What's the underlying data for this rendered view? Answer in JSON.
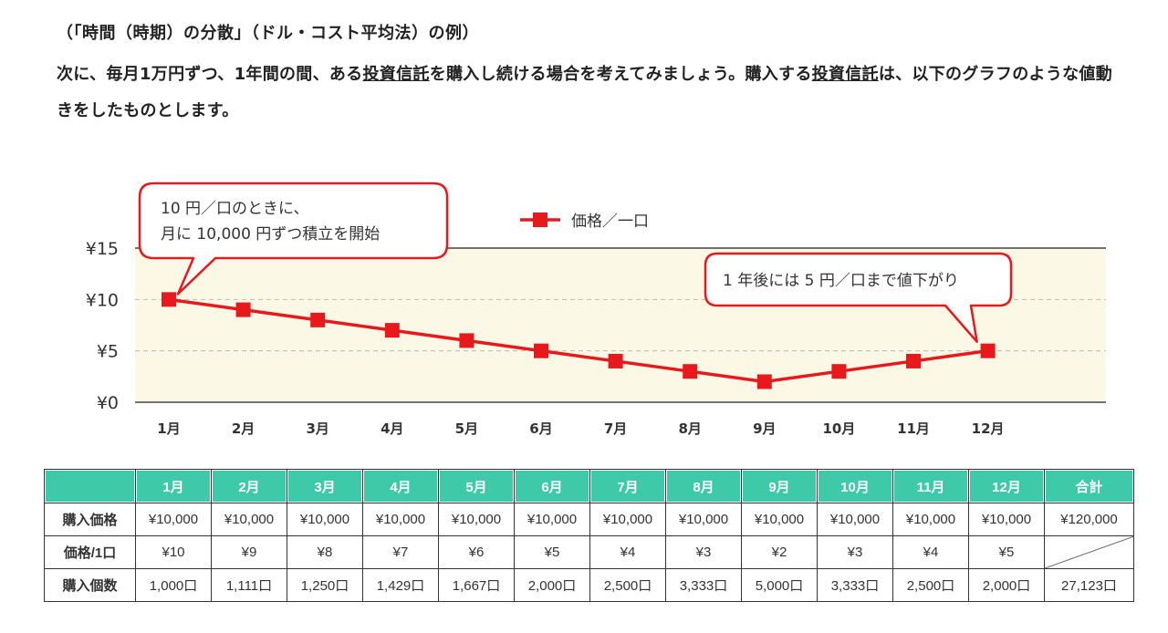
{
  "caption": "（「時間（時期）の分散」（ドル・コスト平均法）の例）",
  "paragraph": {
    "p1": "次に、毎月1万円ずつ、1年間の間、ある",
    "link1": "投資信託",
    "p2": "を購入し続ける場合を考えてみましょう。購入する",
    "link2": "投資信託",
    "p3": "は、以下のグラフのような値動きをしたものとします。"
  },
  "chart_data": {
    "type": "line",
    "categories": [
      "1月",
      "2月",
      "3月",
      "4月",
      "5月",
      "6月",
      "7月",
      "8月",
      "9月",
      "10月",
      "11月",
      "12月"
    ],
    "series": [
      {
        "name": "価格／一口",
        "values": [
          10,
          9,
          8,
          7,
          6,
          5,
          4,
          3,
          2,
          3,
          4,
          5
        ]
      }
    ],
    "y_ticks": [
      "¥15",
      "¥10",
      "¥5",
      "¥0"
    ],
    "y_tick_values": [
      15,
      10,
      5,
      0
    ],
    "ylim": [
      0,
      15
    ],
    "legend_placement": "top-center",
    "grid": true,
    "colors": {
      "line": "#e8191c",
      "plot_bg": "#fbf9e6",
      "callout": "#e8191c",
      "grid": "#bbbbbb"
    },
    "annotations": [
      {
        "line1": "10 円／口のときに、",
        "line2": "月に 10,000 円ずつ積立を開始",
        "anchor": "1月"
      },
      {
        "text": "1 年後には 5 円／口まで値下がり",
        "anchor": "12月"
      }
    ]
  },
  "table": {
    "header": [
      "",
      "1月",
      "2月",
      "3月",
      "4月",
      "5月",
      "6月",
      "7月",
      "8月",
      "9月",
      "10月",
      "11月",
      "12月",
      "合計"
    ],
    "header_color": "#3ec9a9",
    "rows": [
      {
        "label": "購入価格",
        "cells": [
          "¥10,000",
          "¥10,000",
          "¥10,000",
          "¥10,000",
          "¥10,000",
          "¥10,000",
          "¥10,000",
          "¥10,000",
          "¥10,000",
          "¥10,000",
          "¥10,000",
          "¥10,000",
          "¥120,000"
        ]
      },
      {
        "label": "価格/1口",
        "cells": [
          "¥10",
          "¥9",
          "¥8",
          "¥7",
          "¥6",
          "¥5",
          "¥4",
          "¥3",
          "¥2",
          "¥3",
          "¥4",
          "¥5",
          ""
        ]
      },
      {
        "label": "購入個数",
        "cells": [
          "1,000口",
          "1,111口",
          "1,250口",
          "1,429口",
          "1,667口",
          "2,000口",
          "2,500口",
          "3,333口",
          "5,000口",
          "3,333口",
          "2,500口",
          "2,000口",
          "27,123口"
        ]
      }
    ]
  }
}
